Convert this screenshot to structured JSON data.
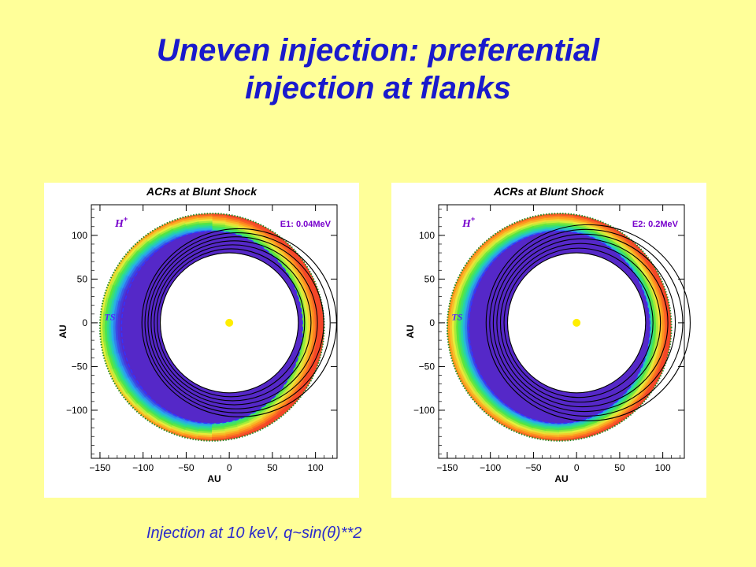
{
  "slide": {
    "title_line1": "Uneven injection: preferential",
    "title_line2": "injection at flanks",
    "caption": "Injection at 10 keV,  q~sin(θ)**2"
  },
  "chart_data": [
    {
      "type": "heatmap",
      "title": "ACRs at Blunt Shock",
      "species_label": "H",
      "species_superscript": "+",
      "energy_label": "E1: 0.04MeV",
      "ts_label": "TS",
      "xlabel": "AU",
      "ylabel": "AU",
      "xlim": [
        -160,
        125
      ],
      "ylim": [
        -155,
        135
      ],
      "x_ticks": [
        -150,
        -100,
        -50,
        0,
        50,
        100
      ],
      "y_ticks": [
        100,
        50,
        0,
        -50,
        -100
      ],
      "x_tick_labels": [
        "−150",
        "−100",
        "−50",
        "0",
        "50",
        "100"
      ],
      "y_tick_labels": [
        "100",
        "50",
        "0",
        "−50",
        "−100"
      ],
      "outer_boundary": {
        "center": [
          -20,
          -5
        ],
        "radius": 130
      },
      "termination_shock": {
        "center": [
          -20,
          -5
        ],
        "radius_x": 105,
        "radius_y": 110
      },
      "inner_boundary": {
        "center": [
          0,
          0
        ],
        "radius": 80
      },
      "sun_position": [
        0,
        0
      ],
      "colors": {
        "sun": "#ffee00",
        "boundary_line": "#3333ff",
        "outer_dots": "#228822",
        "inner_rings": "#000000"
      }
    },
    {
      "type": "heatmap",
      "title": "ACRs at Blunt Shock",
      "species_label": "H",
      "species_superscript": "+",
      "energy_label": "E2: 0.2MeV",
      "ts_label": "TS",
      "xlabel": "AU",
      "ylabel": "AU",
      "xlim": [
        -160,
        125
      ],
      "ylim": [
        -155,
        135
      ],
      "x_ticks": [
        -150,
        -100,
        -50,
        0,
        50,
        100
      ],
      "y_ticks": [
        100,
        50,
        0,
        -50,
        -100
      ],
      "x_tick_labels": [
        "−150",
        "−100",
        "−50",
        "0",
        "50",
        "100"
      ],
      "y_tick_labels": [
        "100",
        "50",
        "0",
        "−50",
        "−100"
      ],
      "outer_boundary": {
        "center": [
          -20,
          -5
        ],
        "radius": 130
      },
      "termination_shock": {
        "center": [
          -20,
          -5
        ],
        "radius_x": 105,
        "radius_y": 110
      },
      "inner_boundary": {
        "center": [
          0,
          0
        ],
        "radius": 80
      },
      "sun_position": [
        0,
        0
      ],
      "colors": {
        "sun": "#ffee00",
        "boundary_line": "#3333ff",
        "outer_dots": "#228822",
        "inner_rings": "#000000"
      }
    }
  ]
}
